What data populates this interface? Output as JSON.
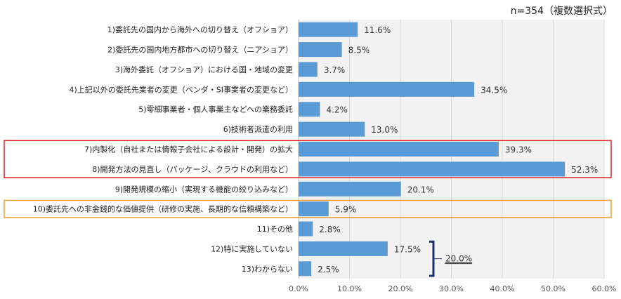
{
  "chart_data": {
    "type": "bar",
    "orientation": "horizontal",
    "note": "n=354（複数選択式）",
    "categories": [
      "1)委託先の国内から海外への切り替え（オフショア）",
      "2)委託先の国内地方都市への切り替え（ニアショア）",
      "3)海外委託（オフショア）における国・地域の変更",
      "4)上記以外の委託先業者の変更（ベンダ・SI事業者の変更など）",
      "5)零細事業者・個人事業主などへの業務委託",
      "6)技術者派遣の利用",
      "7)内製化（自社または情報子会社による設計・開発）の拡大",
      "8)開発方法の見直し（パッケージ、クラウドの利用など）",
      "9)開発規模の縮小（実現する機能の絞り込みなど）",
      "10)委託先への非金銭的な価値提供（研修の実施、長期的な信頼構築など）",
      "11)その他",
      "12)特に実施していない",
      "13)わからない"
    ],
    "values": [
      11.6,
      8.5,
      3.7,
      34.5,
      4.2,
      13.0,
      39.3,
      52.3,
      20.1,
      5.9,
      2.8,
      17.5,
      2.5
    ],
    "value_labels": [
      "11.6%",
      "8.5%",
      "3.7%",
      "34.5%",
      "4.2%",
      "13.0%",
      "39.3%",
      "52.3%",
      "20.1%",
      "5.9%",
      "2.8%",
      "17.5%",
      "2.5%"
    ],
    "xlim": [
      0,
      60
    ],
    "xticks": [
      "0.0%",
      "10.0%",
      "20.0%",
      "30.0%",
      "40.0%",
      "50.0%",
      "60.0%"
    ],
    "bar_color": "#5b9bd5",
    "plot_background": "#f2f2f2",
    "gridlines": true,
    "highlight_groups": [
      {
        "items": [
          6,
          7
        ],
        "color": "#e02020"
      },
      {
        "items": [
          9
        ],
        "color": "#f39c35"
      }
    ],
    "bracket": {
      "items": [
        11,
        12
      ],
      "label": "20.0%",
      "color": "#1f2f6b"
    }
  }
}
